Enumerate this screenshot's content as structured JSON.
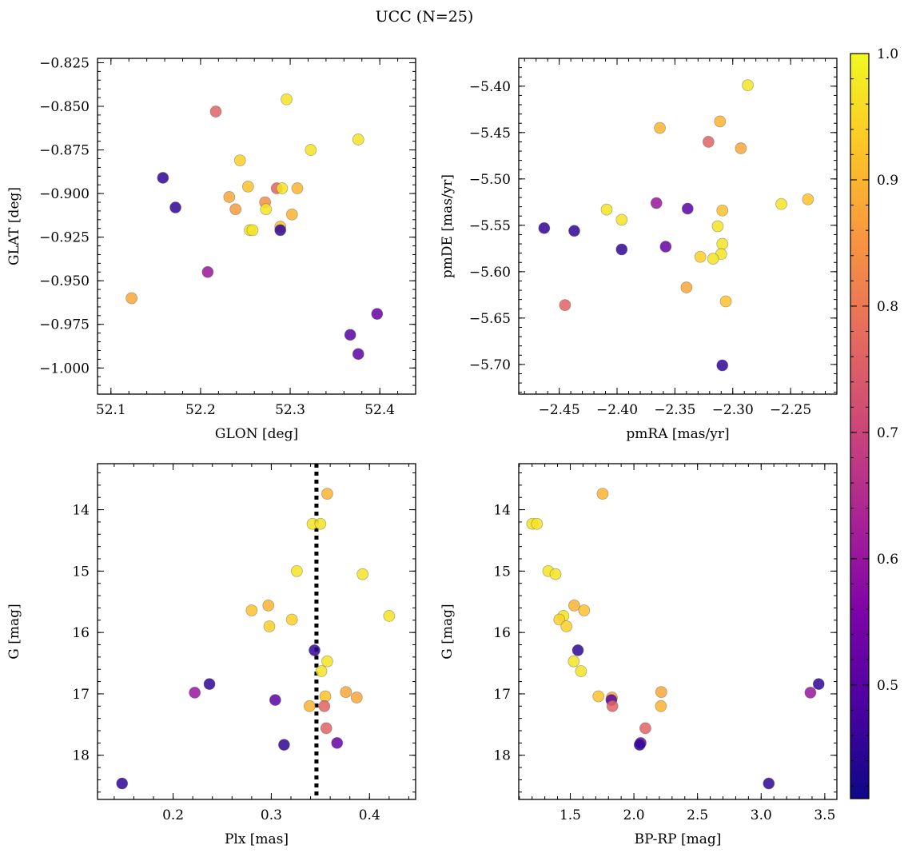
{
  "figure": {
    "title": "UCC (N=25)"
  },
  "colorbar": {
    "range": [
      0.41,
      1.0
    ],
    "ticks": [
      0.5,
      0.6,
      0.7,
      0.8,
      0.9,
      1.0
    ],
    "tick_labels": [
      "0.5",
      "0.6",
      "0.7",
      "0.8",
      "0.9",
      "1.0"
    ],
    "colormap": "plasma"
  },
  "chart_data": [
    {
      "type": "scatter",
      "xlabel": "GLON [deg]",
      "ylabel": "GLAT [deg]",
      "xlim": [
        52.085,
        52.44
      ],
      "ylim": [
        -1.015,
        -0.8225
      ],
      "y_inverted": false,
      "xticks": [
        52.1,
        52.2,
        52.3,
        52.4
      ],
      "xtick_labels": [
        "52.1",
        "52.2",
        "52.3",
        "52.4"
      ],
      "yticks": [
        -1.0,
        -0.975,
        -0.95,
        -0.925,
        -0.9,
        -0.875,
        -0.85,
        -0.825
      ],
      "ytick_labels": [
        "−1.000",
        "−0.975",
        "−0.950",
        "−0.925",
        "−0.900",
        "−0.875",
        "−0.850",
        "−0.825"
      ],
      "points": [
        {
          "x": 52.217,
          "y": -0.853,
          "c": 0.76
        },
        {
          "x": 52.296,
          "y": -0.846,
          "c": 0.97
        },
        {
          "x": 52.376,
          "y": -0.869,
          "c": 0.97
        },
        {
          "x": 52.323,
          "y": -0.875,
          "c": 0.97
        },
        {
          "x": 52.244,
          "y": -0.881,
          "c": 0.94
        },
        {
          "x": 52.158,
          "y": -0.891,
          "c": 0.45
        },
        {
          "x": 52.253,
          "y": -0.896,
          "c": 0.92
        },
        {
          "x": 52.285,
          "y": -0.897,
          "c": 0.76
        },
        {
          "x": 52.291,
          "y": -0.897,
          "c": 0.97
        },
        {
          "x": 52.308,
          "y": -0.897,
          "c": 0.9
        },
        {
          "x": 52.232,
          "y": -0.902,
          "c": 0.88
        },
        {
          "x": 52.272,
          "y": -0.905,
          "c": 0.84
        },
        {
          "x": 52.172,
          "y": -0.908,
          "c": 0.45
        },
        {
          "x": 52.239,
          "y": -0.909,
          "c": 0.86
        },
        {
          "x": 52.273,
          "y": -0.909,
          "c": 0.97
        },
        {
          "x": 52.302,
          "y": -0.912,
          "c": 0.9
        },
        {
          "x": 52.289,
          "y": -0.919,
          "c": 0.92
        },
        {
          "x": 52.255,
          "y": -0.921,
          "c": 0.97
        },
        {
          "x": 52.258,
          "y": -0.921,
          "c": 0.97
        },
        {
          "x": 52.289,
          "y": -0.921,
          "c": 0.45
        },
        {
          "x": 52.208,
          "y": -0.945,
          "c": 0.6
        },
        {
          "x": 52.123,
          "y": -0.96,
          "c": 0.88
        },
        {
          "x": 52.397,
          "y": -0.969,
          "c": 0.52
        },
        {
          "x": 52.367,
          "y": -0.981,
          "c": 0.5
        },
        {
          "x": 52.376,
          "y": -0.992,
          "c": 0.51
        }
      ]
    },
    {
      "type": "scatter",
      "xlabel": "pmRA [mas/yr]",
      "ylabel": "pmDE [mas/yr]",
      "xlim": [
        -2.485,
        -2.21
      ],
      "ylim": [
        -5.732,
        -5.37
      ],
      "y_inverted": false,
      "xticks": [
        -2.45,
        -2.4,
        -2.35,
        -2.3,
        -2.25
      ],
      "xtick_labels": [
        "−2.45",
        "−2.40",
        "−2.35",
        "−2.30",
        "−2.25"
      ],
      "yticks": [
        -5.7,
        -5.65,
        -5.6,
        -5.55,
        -5.5,
        -5.45,
        -5.4
      ],
      "ytick_labels": [
        "−5.70",
        "−5.65",
        "−5.60",
        "−5.55",
        "−5.50",
        "−5.45",
        "−5.40"
      ],
      "points": [
        {
          "x": -2.287,
          "y": -5.399,
          "c": 0.97
        },
        {
          "x": -2.311,
          "y": -5.438,
          "c": 0.9
        },
        {
          "x": -2.363,
          "y": -5.445,
          "c": 0.9
        },
        {
          "x": -2.321,
          "y": -5.46,
          "c": 0.76
        },
        {
          "x": -2.293,
          "y": -5.467,
          "c": 0.88
        },
        {
          "x": -2.235,
          "y": -5.522,
          "c": 0.92
        },
        {
          "x": -2.366,
          "y": -5.526,
          "c": 0.6
        },
        {
          "x": -2.258,
          "y": -5.527,
          "c": 0.97
        },
        {
          "x": -2.339,
          "y": -5.532,
          "c": 0.5
        },
        {
          "x": -2.409,
          "y": -5.533,
          "c": 0.97
        },
        {
          "x": -2.309,
          "y": -5.534,
          "c": 0.92
        },
        {
          "x": -2.396,
          "y": -5.544,
          "c": 0.97
        },
        {
          "x": -2.313,
          "y": -5.551,
          "c": 0.97
        },
        {
          "x": -2.463,
          "y": -5.553,
          "c": 0.45
        },
        {
          "x": -2.437,
          "y": -5.556,
          "c": 0.45
        },
        {
          "x": -2.309,
          "y": -5.57,
          "c": 0.97
        },
        {
          "x": -2.358,
          "y": -5.573,
          "c": 0.52
        },
        {
          "x": -2.396,
          "y": -5.576,
          "c": 0.45
        },
        {
          "x": -2.31,
          "y": -5.581,
          "c": 0.97
        },
        {
          "x": -2.328,
          "y": -5.584,
          "c": 0.94
        },
        {
          "x": -2.317,
          "y": -5.586,
          "c": 0.97
        },
        {
          "x": -2.34,
          "y": -5.617,
          "c": 0.88
        },
        {
          "x": -2.306,
          "y": -5.632,
          "c": 0.92
        },
        {
          "x": -2.445,
          "y": -5.636,
          "c": 0.76
        },
        {
          "x": -2.309,
          "y": -5.701,
          "c": 0.45
        }
      ]
    },
    {
      "type": "scatter",
      "xlabel": "Plx [mas]",
      "ylabel": "G [mag]",
      "xlim": [
        0.123,
        0.447
      ],
      "ylim": [
        13.25,
        18.72
      ],
      "y_inverted": true,
      "xticks": [
        0.2,
        0.3,
        0.4
      ],
      "xtick_labels": [
        "0.2",
        "0.3",
        "0.4"
      ],
      "yticks": [
        14,
        15,
        16,
        17,
        18
      ],
      "ytick_labels": [
        "14",
        "15",
        "16",
        "17",
        "18"
      ],
      "vline": {
        "x": 0.346,
        "style": "dotted"
      },
      "points": [
        {
          "x": 0.357,
          "y": 13.74,
          "c": 0.9
        },
        {
          "x": 0.342,
          "y": 14.23,
          "c": 0.97
        },
        {
          "x": 0.35,
          "y": 14.23,
          "c": 0.97
        },
        {
          "x": 0.326,
          "y": 15.0,
          "c": 0.97
        },
        {
          "x": 0.393,
          "y": 15.05,
          "c": 0.97
        },
        {
          "x": 0.297,
          "y": 15.56,
          "c": 0.9
        },
        {
          "x": 0.28,
          "y": 15.64,
          "c": 0.92
        },
        {
          "x": 0.42,
          "y": 15.73,
          "c": 0.97
        },
        {
          "x": 0.321,
          "y": 15.79,
          "c": 0.94
        },
        {
          "x": 0.298,
          "y": 15.9,
          "c": 0.94
        },
        {
          "x": 0.344,
          "y": 16.29,
          "c": 0.45
        },
        {
          "x": 0.357,
          "y": 16.47,
          "c": 0.97
        },
        {
          "x": 0.351,
          "y": 16.63,
          "c": 0.97
        },
        {
          "x": 0.237,
          "y": 16.84,
          "c": 0.45
        },
        {
          "x": 0.222,
          "y": 16.98,
          "c": 0.6
        },
        {
          "x": 0.376,
          "y": 16.97,
          "c": 0.88
        },
        {
          "x": 0.355,
          "y": 17.04,
          "c": 0.92
        },
        {
          "x": 0.387,
          "y": 17.06,
          "c": 0.88
        },
        {
          "x": 0.304,
          "y": 17.1,
          "c": 0.5
        },
        {
          "x": 0.339,
          "y": 17.2,
          "c": 0.9
        },
        {
          "x": 0.354,
          "y": 17.2,
          "c": 0.76
        },
        {
          "x": 0.356,
          "y": 17.56,
          "c": 0.76
        },
        {
          "x": 0.367,
          "y": 17.8,
          "c": 0.52
        },
        {
          "x": 0.313,
          "y": 17.83,
          "c": 0.45
        },
        {
          "x": 0.148,
          "y": 18.46,
          "c": 0.45
        }
      ]
    },
    {
      "type": "scatter",
      "xlabel": "BP-RP [mag]",
      "ylabel": "G [mag]",
      "xlim": [
        1.095,
        3.595
      ],
      "ylim": [
        13.25,
        18.72
      ],
      "y_inverted": true,
      "xticks": [
        1.5,
        2.0,
        2.5,
        3.0,
        3.5
      ],
      "xtick_labels": [
        "1.5",
        "2.0",
        "2.5",
        "3.0",
        "3.5"
      ],
      "yticks": [
        14,
        15,
        16,
        17,
        18
      ],
      "ytick_labels": [
        "14",
        "15",
        "16",
        "17",
        "18"
      ],
      "points": [
        {
          "x": 1.754,
          "y": 13.74,
          "c": 0.9
        },
        {
          "x": 1.201,
          "y": 14.23,
          "c": 0.97
        },
        {
          "x": 1.238,
          "y": 14.23,
          "c": 0.97
        },
        {
          "x": 1.327,
          "y": 15.0,
          "c": 0.97
        },
        {
          "x": 1.384,
          "y": 15.05,
          "c": 0.97
        },
        {
          "x": 1.531,
          "y": 15.56,
          "c": 0.9
        },
        {
          "x": 1.609,
          "y": 15.64,
          "c": 0.92
        },
        {
          "x": 1.446,
          "y": 15.73,
          "c": 0.97
        },
        {
          "x": 1.414,
          "y": 15.79,
          "c": 0.94
        },
        {
          "x": 1.47,
          "y": 15.9,
          "c": 0.94
        },
        {
          "x": 1.56,
          "y": 16.29,
          "c": 0.45
        },
        {
          "x": 1.527,
          "y": 16.47,
          "c": 0.97
        },
        {
          "x": 1.584,
          "y": 16.63,
          "c": 0.97
        },
        {
          "x": 3.452,
          "y": 16.84,
          "c": 0.45
        },
        {
          "x": 3.387,
          "y": 16.98,
          "c": 0.6
        },
        {
          "x": 2.215,
          "y": 16.97,
          "c": 0.88
        },
        {
          "x": 1.721,
          "y": 17.04,
          "c": 0.92
        },
        {
          "x": 1.827,
          "y": 17.06,
          "c": 0.88
        },
        {
          "x": 1.823,
          "y": 17.1,
          "c": 0.5
        },
        {
          "x": 2.212,
          "y": 17.2,
          "c": 0.9
        },
        {
          "x": 1.831,
          "y": 17.2,
          "c": 0.76
        },
        {
          "x": 2.09,
          "y": 17.56,
          "c": 0.76
        },
        {
          "x": 2.053,
          "y": 17.8,
          "c": 0.52
        },
        {
          "x": 2.045,
          "y": 17.83,
          "c": 0.45
        },
        {
          "x": 3.06,
          "y": 18.46,
          "c": 0.45
        }
      ]
    }
  ]
}
